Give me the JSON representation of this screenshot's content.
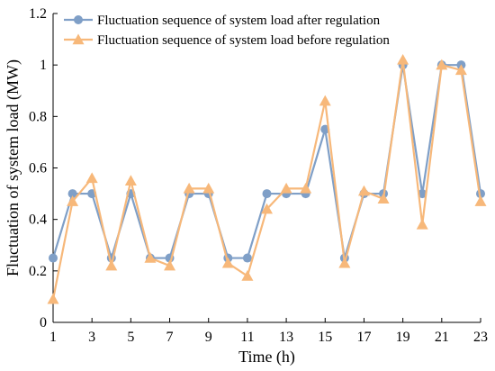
{
  "chart_data": {
    "type": "line",
    "xlabel": "Time (h)",
    "ylabel": "Fluctuation of system load (MW)",
    "xlim": [
      1,
      23
    ],
    "ylim": [
      0,
      1.2
    ],
    "x_ticks": [
      1,
      3,
      5,
      7,
      9,
      11,
      13,
      15,
      17,
      19,
      21,
      23
    ],
    "y_ticks": [
      0,
      0.2,
      0.4,
      0.6,
      0.8,
      1,
      1.2
    ],
    "y_tick_labels": [
      "0",
      "0.2",
      "0.4",
      "0.6",
      "0.8",
      "1",
      "1.2"
    ],
    "x": [
      1,
      2,
      3,
      4,
      5,
      6,
      7,
      8,
      9,
      10,
      11,
      12,
      13,
      14,
      15,
      16,
      17,
      18,
      19,
      20,
      21,
      22,
      23
    ],
    "legend_position": "top-left",
    "grid": false,
    "series": [
      {
        "name": "Fluctuation sequence of system load after regulation",
        "color": "#7f9fc7",
        "marker": "circle",
        "values": [
          0.25,
          0.5,
          0.5,
          0.25,
          0.5,
          0.25,
          0.25,
          0.5,
          0.5,
          0.25,
          0.25,
          0.5,
          0.5,
          0.5,
          0.75,
          0.25,
          0.5,
          0.5,
          1.0,
          0.5,
          1.0,
          1.0,
          0.5
        ]
      },
      {
        "name": "Fluctuation sequence of system load before regulation",
        "color": "#f7b87a",
        "marker": "triangle",
        "values": [
          0.09,
          0.47,
          0.56,
          0.22,
          0.55,
          0.25,
          0.22,
          0.52,
          0.52,
          0.23,
          0.18,
          0.44,
          0.52,
          0.52,
          0.86,
          0.23,
          0.51,
          0.48,
          1.02,
          0.38,
          1.0,
          0.98,
          0.47
        ]
      }
    ]
  }
}
